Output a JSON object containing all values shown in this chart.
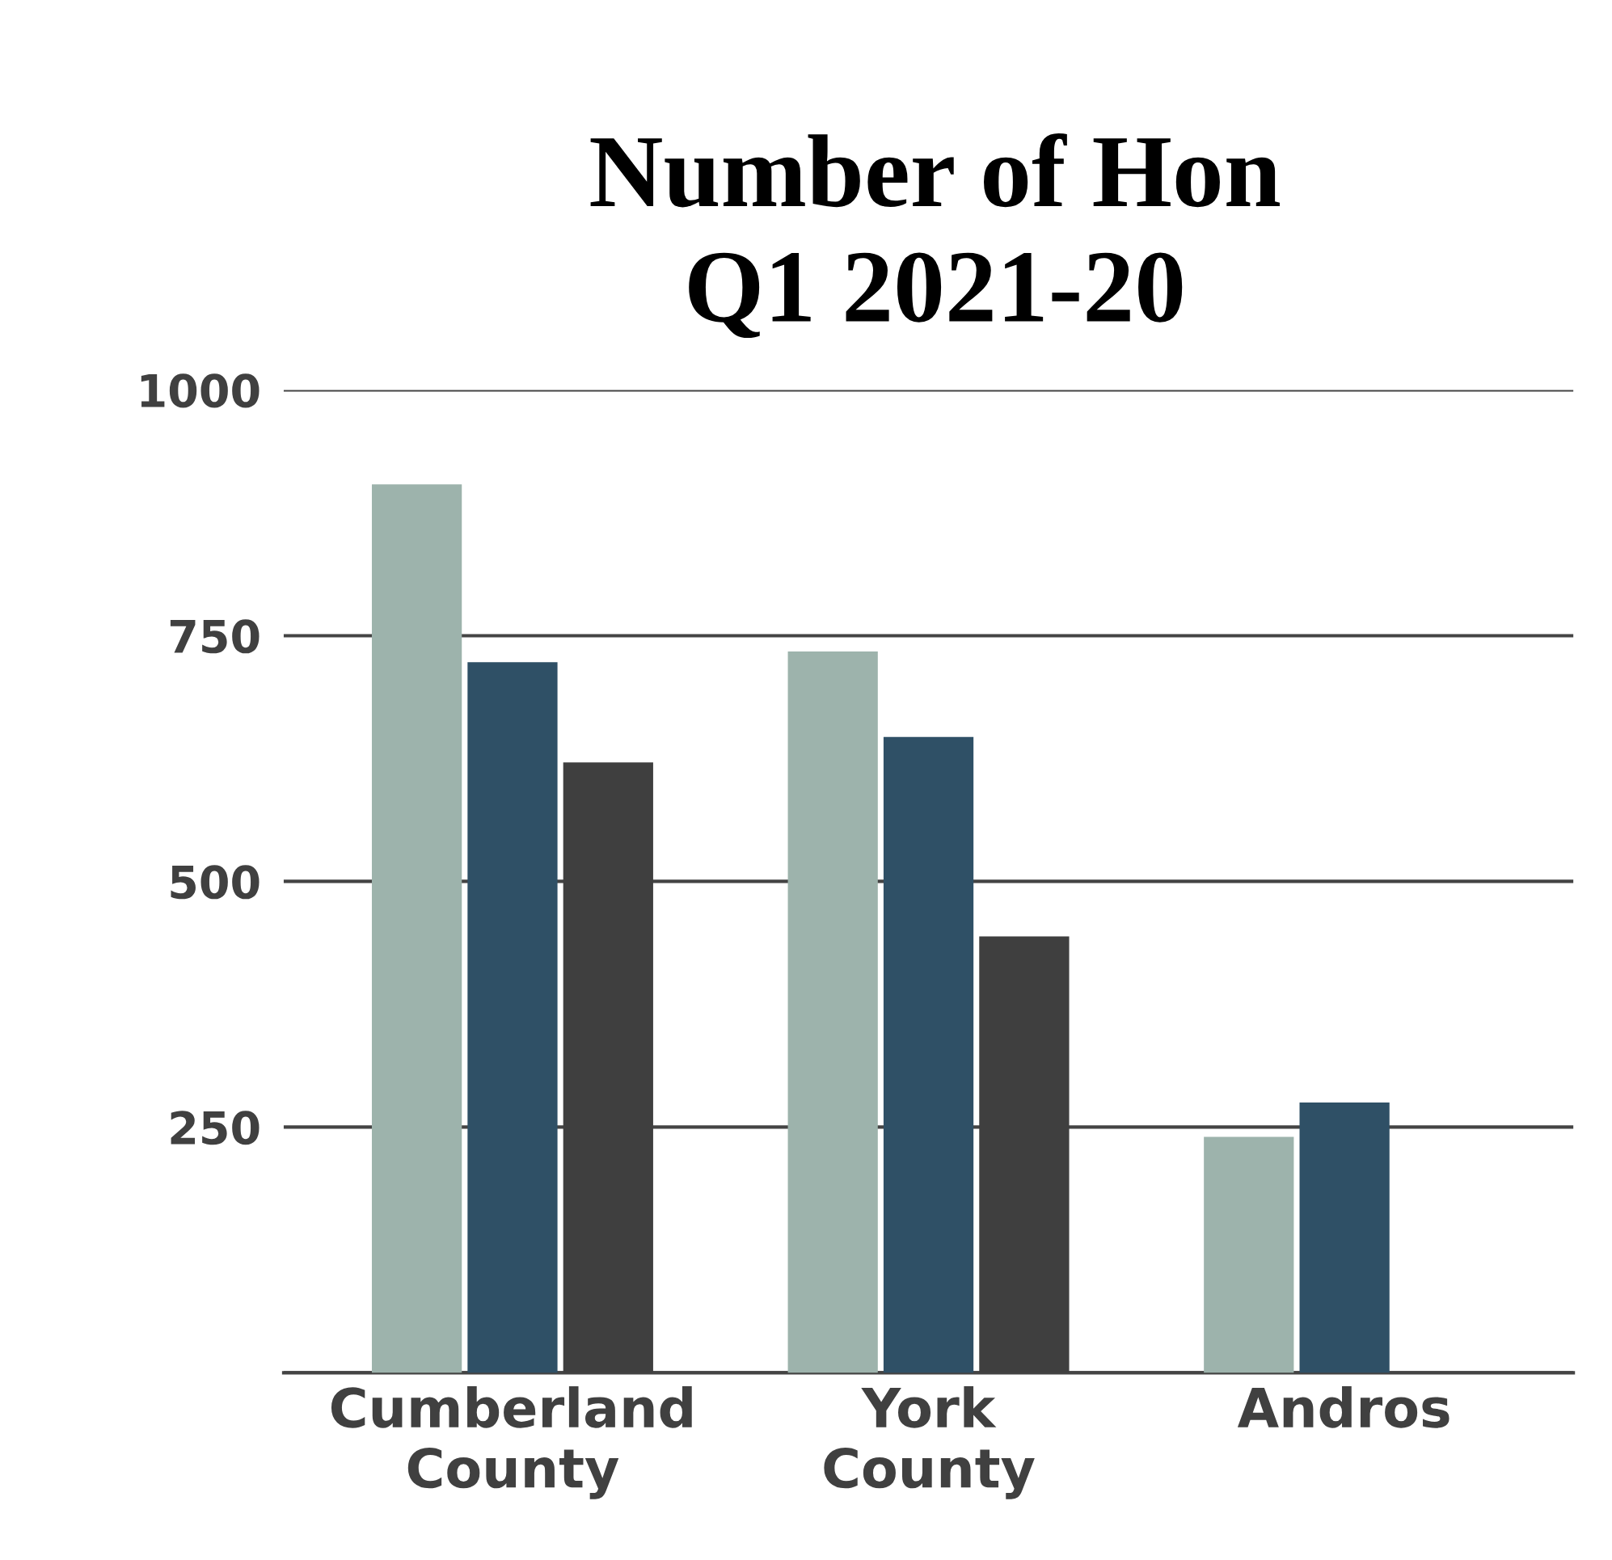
{
  "chart_data": {
    "type": "bar",
    "title": "Number of Hon\nQ1 2021-20",
    "categories": [
      "Cumberland County",
      "York County",
      "Andros"
    ],
    "series": [
      {
        "color": "#9db3ac",
        "values": [
          904,
          734,
          240
        ]
      },
      {
        "color": "#2f5066",
        "values": [
          723,
          647,
          275
        ]
      },
      {
        "color": "#3f3f3f",
        "values": [
          621,
          444,
          null
        ]
      }
    ],
    "ylim": [
      0,
      1000
    ],
    "yticks": [
      {
        "value": 0,
        "label": null
      },
      250,
      500,
      750,
      1000
    ],
    "grid": "y",
    "legend": false
  }
}
